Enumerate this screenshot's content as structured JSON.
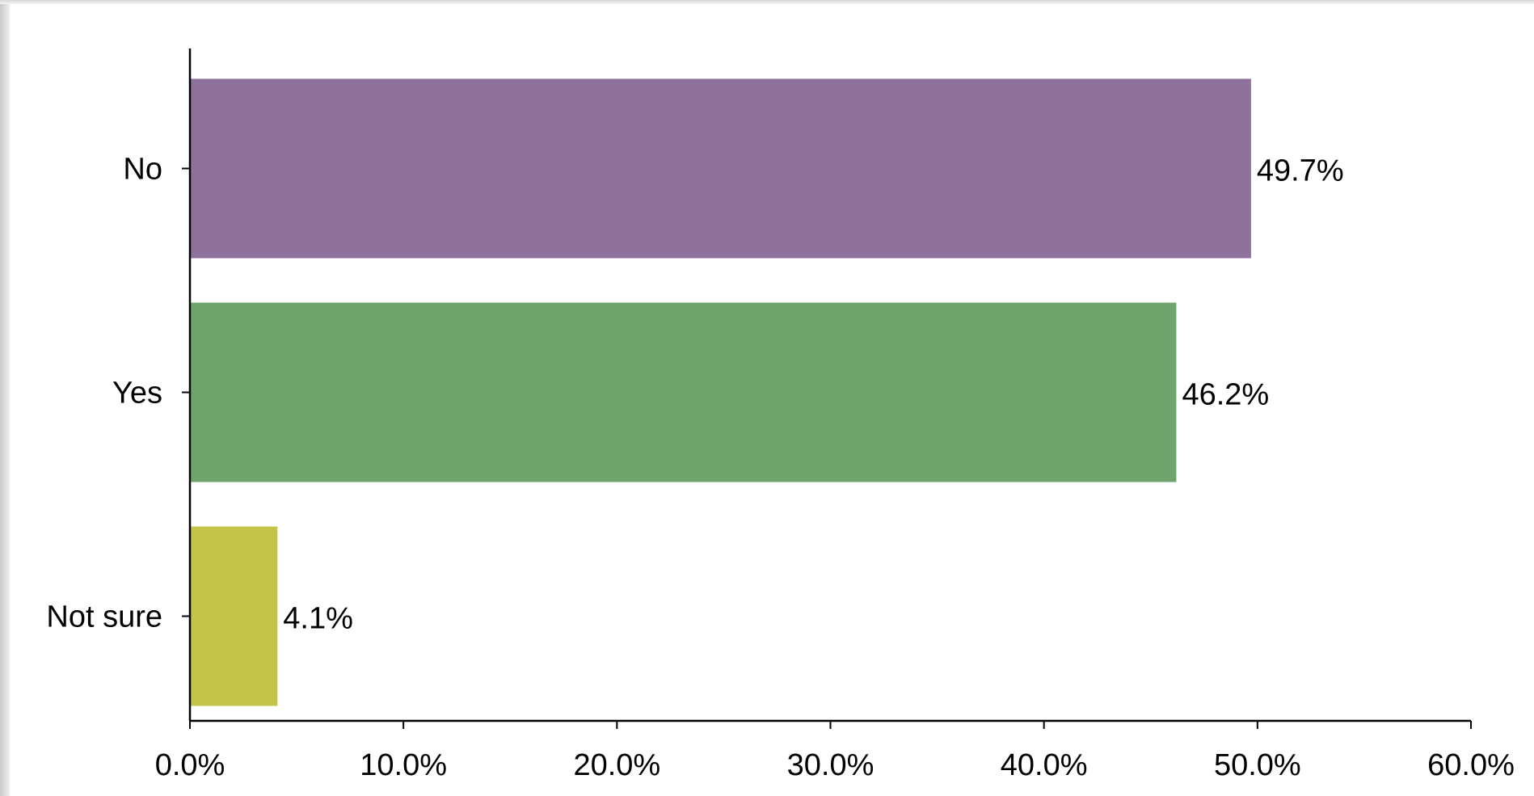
{
  "chart_data": {
    "type": "bar",
    "orientation": "horizontal",
    "title": "",
    "xlabel": "",
    "ylabel": "",
    "categories": [
      "No",
      "Yes",
      "Not sure"
    ],
    "values": [
      49.7,
      46.2,
      4.1
    ],
    "value_labels": [
      "49.7%",
      "46.2%",
      "4.1%"
    ],
    "colors": [
      "#8e729b",
      "#6fa46c",
      "#c4c44b"
    ],
    "xlim": [
      0,
      60
    ],
    "xticks": [
      0,
      10,
      20,
      30,
      40,
      50,
      60
    ],
    "xtick_labels": [
      "0.0%",
      "10.0%",
      "20.0%",
      "30.0%",
      "40.0%",
      "50.0%",
      "60.0%"
    ],
    "grid": false,
    "legend": "none"
  }
}
